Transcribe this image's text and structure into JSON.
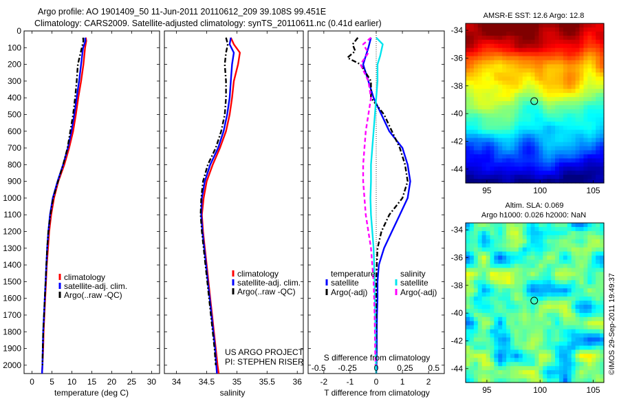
{
  "titles": {
    "line1": "Argo profile: AO 1901409_50 11-Jun-2011 20110612_209 39.108S 99.451E",
    "line2": "Climatology: CARS2009. Satellite-adjusted climatology: synTS_20110611.nc (0.41d earlier)"
  },
  "colors": {
    "climatology": "#ff0000",
    "satellite": "#0000ff",
    "argo": "#000000",
    "sal_satellite": "#00e5ee",
    "sal_argo": "#ff00ff"
  },
  "project": {
    "line1": "US ARGO PROJECT",
    "line2": "PI: STEPHEN RISER"
  },
  "timestamp": "©IMOS 29-Sep-2011 19:49:37",
  "chart_data": [
    {
      "type": "line",
      "id": "temperature",
      "xlabel": "temperature (deg C)",
      "xlim": [
        -2,
        32
      ],
      "xticks": [
        0,
        5,
        10,
        15,
        20,
        25,
        30
      ],
      "ylim": [
        2050,
        0
      ],
      "yticks": [
        0,
        100,
        200,
        300,
        400,
        500,
        600,
        700,
        800,
        900,
        1000,
        1100,
        1200,
        1300,
        1400,
        1500,
        1600,
        1700,
        1800,
        1900,
        2000
      ],
      "legend": [
        "climatology",
        "satellite-adj. clim.",
        "Argo(..raw -QC)"
      ],
      "series": [
        {
          "name": "climatology",
          "style": "climatology",
          "points": [
            [
              13.5,
              40
            ],
            [
              13.6,
              60
            ],
            [
              13.3,
              100
            ],
            [
              12.9,
              200
            ],
            [
              12.3,
              300
            ],
            [
              11.6,
              400
            ],
            [
              11.0,
              500
            ],
            [
              10.3,
              600
            ],
            [
              9.3,
              700
            ],
            [
              8.1,
              800
            ],
            [
              6.6,
              900
            ],
            [
              5.5,
              1000
            ],
            [
              4.8,
              1100
            ],
            [
              4.3,
              1200
            ],
            [
              4.0,
              1300
            ],
            [
              3.7,
              1400
            ],
            [
              3.5,
              1500
            ],
            [
              3.3,
              1600
            ],
            [
              3.1,
              1700
            ],
            [
              2.9,
              1800
            ],
            [
              2.8,
              1900
            ],
            [
              2.6,
              2000
            ],
            [
              2.5,
              2050
            ]
          ]
        },
        {
          "name": "satellite-adj. clim.",
          "style": "satellite",
          "points": [
            [
              13.3,
              40
            ],
            [
              13.4,
              60
            ],
            [
              12.8,
              100
            ],
            [
              12.3,
              200
            ],
            [
              11.8,
              300
            ],
            [
              11.2,
              400
            ],
            [
              10.6,
              500
            ],
            [
              9.9,
              600
            ],
            [
              9.0,
              700
            ],
            [
              7.8,
              800
            ],
            [
              6.4,
              900
            ],
            [
              5.2,
              1000
            ],
            [
              4.5,
              1100
            ],
            [
              4.1,
              1200
            ],
            [
              3.8,
              1300
            ],
            [
              3.6,
              1400
            ],
            [
              3.4,
              1500
            ],
            [
              3.2,
              1600
            ],
            [
              3.0,
              1700
            ],
            [
              2.8,
              1800
            ],
            [
              2.7,
              1900
            ],
            [
              2.6,
              2000
            ],
            [
              2.5,
              2050
            ]
          ]
        },
        {
          "name": "Argo(..raw -QC)",
          "style": "argo",
          "points": [
            [
              12.8,
              40
            ],
            [
              12.9,
              60
            ],
            [
              12.5,
              100
            ],
            [
              11.5,
              200
            ],
            [
              11.2,
              300
            ],
            [
              10.8,
              400
            ],
            [
              10.3,
              500
            ],
            [
              9.6,
              600
            ],
            [
              8.9,
              700
            ],
            [
              7.8,
              800
            ],
            [
              6.5,
              900
            ],
            [
              5.3,
              1000
            ],
            [
              4.6,
              1100
            ],
            [
              4.1,
              1200
            ],
            [
              3.8,
              1300
            ],
            [
              3.6,
              1400
            ],
            [
              3.4,
              1500
            ],
            [
              3.2,
              1600
            ],
            [
              3.0,
              1700
            ],
            [
              2.8,
              1800
            ],
            [
              2.7,
              1900
            ],
            [
              2.6,
              2000
            ]
          ]
        }
      ]
    },
    {
      "type": "line",
      "id": "salinity",
      "xlabel": "salinity",
      "xlim": [
        33.8,
        36.1
      ],
      "xticks": [
        34,
        34.5,
        35,
        35.5,
        36
      ],
      "ylim": [
        2050,
        0
      ],
      "legend": [
        "climatology",
        "satellite-adj. clim.",
        "Argo(..raw -QC)"
      ],
      "series": [
        {
          "name": "climatology",
          "style": "climatology",
          "points": [
            [
              34.9,
              40
            ],
            [
              34.95,
              80
            ],
            [
              35.05,
              130
            ],
            [
              35.02,
              200
            ],
            [
              34.95,
              300
            ],
            [
              34.92,
              400
            ],
            [
              34.88,
              500
            ],
            [
              34.82,
              600
            ],
            [
              34.72,
              700
            ],
            [
              34.6,
              800
            ],
            [
              34.5,
              900
            ],
            [
              34.45,
              1000
            ],
            [
              34.42,
              1100
            ],
            [
              34.44,
              1200
            ],
            [
              34.47,
              1300
            ],
            [
              34.5,
              1400
            ],
            [
              34.53,
              1500
            ],
            [
              34.56,
              1600
            ],
            [
              34.59,
              1700
            ],
            [
              34.62,
              1800
            ],
            [
              34.65,
              1900
            ],
            [
              34.68,
              2000
            ],
            [
              34.7,
              2050
            ]
          ]
        },
        {
          "name": "satellite-adj. clim.",
          "style": "satellite",
          "points": [
            [
              34.9,
              40
            ],
            [
              34.88,
              80
            ],
            [
              34.95,
              130
            ],
            [
              34.92,
              200
            ],
            [
              34.9,
              300
            ],
            [
              34.88,
              400
            ],
            [
              34.84,
              500
            ],
            [
              34.78,
              600
            ],
            [
              34.69,
              700
            ],
            [
              34.56,
              800
            ],
            [
              34.47,
              900
            ],
            [
              34.42,
              1000
            ],
            [
              34.41,
              1100
            ],
            [
              34.43,
              1200
            ],
            [
              34.46,
              1300
            ],
            [
              34.49,
              1400
            ],
            [
              34.52,
              1500
            ],
            [
              34.55,
              1600
            ],
            [
              34.58,
              1700
            ],
            [
              34.61,
              1800
            ],
            [
              34.64,
              1900
            ],
            [
              34.66,
              2000
            ],
            [
              34.67,
              2050
            ]
          ]
        },
        {
          "name": "Argo(..raw -QC)",
          "style": "argo",
          "points": [
            [
              34.82,
              40
            ],
            [
              34.85,
              80
            ],
            [
              34.82,
              130
            ],
            [
              34.8,
              200
            ],
            [
              34.82,
              300
            ],
            [
              34.82,
              400
            ],
            [
              34.8,
              500
            ],
            [
              34.74,
              600
            ],
            [
              34.65,
              700
            ],
            [
              34.52,
              800
            ],
            [
              34.44,
              900
            ],
            [
              34.41,
              1000
            ],
            [
              34.4,
              1100
            ],
            [
              34.42,
              1200
            ],
            [
              34.45,
              1300
            ],
            [
              34.48,
              1400
            ],
            [
              34.51,
              1500
            ],
            [
              34.54,
              1600
            ],
            [
              34.57,
              1700
            ],
            [
              34.6,
              1800
            ],
            [
              34.63,
              1900
            ],
            [
              34.65,
              2000
            ]
          ]
        }
      ]
    },
    {
      "type": "line",
      "id": "difference",
      "xlabel": "T difference from climatology",
      "xlabel_top": "S difference from climatology",
      "xlim": [
        -2.6,
        2.6
      ],
      "xticks": [
        -2,
        -1,
        0,
        1,
        2
      ],
      "xticks_s": [
        -0.5,
        -0.25,
        0,
        0.25,
        0.5
      ],
      "ylim": [
        2050,
        0
      ],
      "legend_left_title": "temperature",
      "legend_right_title": "salinity",
      "legend": [
        "satellite",
        "Argo(-adj)",
        "satellite",
        "Argo(-adj)"
      ],
      "series": [
        {
          "name": "satellite",
          "style": "satellite",
          "points": [
            [
              -0.2,
              40
            ],
            [
              -0.3,
              100
            ],
            [
              -0.5,
              200
            ],
            [
              -0.3,
              300
            ],
            [
              -0.1,
              400
            ],
            [
              0.2,
              500
            ],
            [
              0.5,
              600
            ],
            [
              1.0,
              700
            ],
            [
              1.2,
              800
            ],
            [
              1.3,
              900
            ],
            [
              1.2,
              1000
            ],
            [
              0.9,
              1100
            ],
            [
              0.6,
              1200
            ],
            [
              0.3,
              1300
            ],
            [
              0.1,
              1400
            ],
            [
              0.05,
              1500
            ],
            [
              0.05,
              1600
            ],
            [
              0.03,
              1700
            ],
            [
              0.02,
              1800
            ],
            [
              0.02,
              1900
            ],
            [
              0.01,
              2000
            ],
            [
              0,
              2050
            ]
          ]
        },
        {
          "name": "Argo(-adj)",
          "style": "argo",
          "points": [
            [
              -0.7,
              40
            ],
            [
              -0.9,
              80
            ],
            [
              -0.8,
              120
            ],
            [
              -1.1,
              160
            ],
            [
              -0.6,
              200
            ],
            [
              -0.2,
              300
            ],
            [
              -0.2,
              400
            ],
            [
              0.3,
              500
            ],
            [
              0.6,
              600
            ],
            [
              0.9,
              700
            ],
            [
              1.1,
              800
            ],
            [
              1.2,
              900
            ],
            [
              1.0,
              1000
            ],
            [
              0.5,
              1100
            ],
            [
              0.2,
              1200
            ],
            [
              0.05,
              1300
            ],
            [
              0.02,
              1400
            ],
            [
              0,
              1500
            ],
            [
              0,
              1600
            ],
            [
              0,
              1700
            ],
            [
              0,
              1800
            ],
            [
              0,
              1900
            ],
            [
              0,
              2000
            ]
          ]
        },
        {
          "name": "satellite",
          "style": "sal_satellite",
          "points": [
            [
              0.0,
              40
            ],
            [
              0.25,
              80
            ],
            [
              0.15,
              150
            ],
            [
              0.05,
              200
            ],
            [
              0.05,
              300
            ],
            [
              0.0,
              400
            ],
            [
              -0.05,
              500
            ],
            [
              -0.1,
              600
            ],
            [
              -0.15,
              700
            ],
            [
              -0.2,
              800
            ],
            [
              -0.2,
              900
            ],
            [
              -0.22,
              1000
            ],
            [
              -0.2,
              1100
            ],
            [
              -0.15,
              1200
            ],
            [
              -0.1,
              1300
            ],
            [
              -0.08,
              1400
            ],
            [
              -0.06,
              1500
            ],
            [
              -0.05,
              1600
            ],
            [
              -0.04,
              1700
            ],
            [
              -0.03,
              1800
            ],
            [
              -0.02,
              1900
            ],
            [
              -0.01,
              2000
            ],
            [
              0,
              2050
            ]
          ]
        },
        {
          "name": "Argo(-adj)",
          "style": "sal_argo",
          "points": [
            [
              -0.2,
              40
            ],
            [
              -0.5,
              80
            ],
            [
              -0.3,
              130
            ],
            [
              -0.6,
              200
            ],
            [
              -0.3,
              300
            ],
            [
              -0.2,
              400
            ],
            [
              -0.3,
              500
            ],
            [
              -0.4,
              600
            ],
            [
              -0.45,
              700
            ],
            [
              -0.5,
              800
            ],
            [
              -0.5,
              900
            ],
            [
              -0.45,
              1000
            ],
            [
              -0.4,
              1100
            ],
            [
              -0.3,
              1200
            ],
            [
              -0.2,
              1300
            ],
            [
              -0.15,
              1400
            ],
            [
              -0.1,
              1500
            ],
            [
              -0.08,
              1600
            ],
            [
              -0.06,
              1700
            ],
            [
              -0.05,
              1800
            ],
            [
              -0.04,
              1900
            ],
            [
              -0.03,
              2000
            ]
          ]
        }
      ]
    },
    {
      "type": "heatmap",
      "id": "sst-map",
      "title": "AMSR-E SST: 12.6 Argo: 12.8",
      "xlim": [
        93,
        106
      ],
      "ylim": [
        -45,
        -33.5
      ],
      "xticks": [
        95,
        100,
        105
      ],
      "yticks": [
        -34,
        -36,
        -38,
        -40,
        -42,
        -44
      ],
      "marker": [
        99.45,
        -39.1
      ]
    },
    {
      "type": "heatmap",
      "id": "sla-map",
      "title_line1": "Altim. SLA: 0.069",
      "title_line2": "Argo h1000: 0.026 h2000: NaN",
      "xlim": [
        93,
        106
      ],
      "ylim": [
        -45,
        -33.5
      ],
      "xticks": [
        95,
        100,
        105
      ],
      "yticks": [
        -34,
        -36,
        -38,
        -40,
        -42,
        -44
      ],
      "marker": [
        99.45,
        -39.1
      ]
    }
  ]
}
